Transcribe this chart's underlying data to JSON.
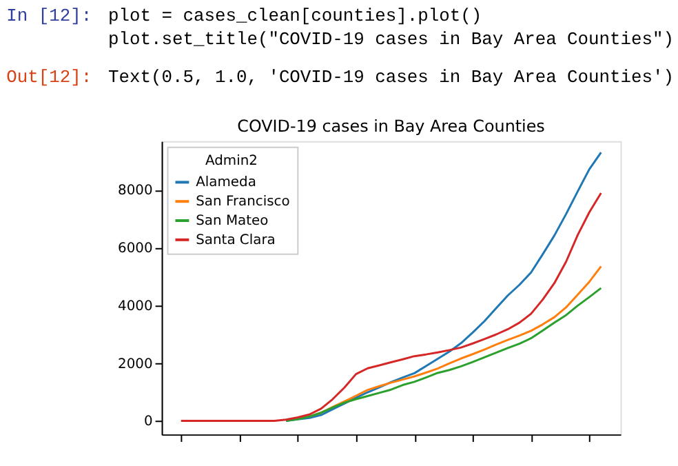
{
  "chart_data": {
    "type": "line",
    "title": "COVID-19 cases in Bay Area Counties",
    "legend_title": "Admin2",
    "legend": "top left",
    "grid": false,
    "tick_labels": "y",
    "categories": [
      null,
      null,
      null,
      null,
      null,
      null,
      null,
      null,
      null,
      null,
      null,
      null,
      null,
      null,
      null,
      null,
      null,
      null,
      null,
      null,
      null,
      null,
      null,
      null,
      null,
      null,
      null,
      null,
      null,
      null,
      null,
      null,
      null,
      null,
      null,
      null,
      null
    ],
    "ylim": [
      -470,
      9690
    ],
    "yticks": [
      0,
      2000,
      4000,
      6000,
      8000
    ],
    "series": [
      {
        "name": "Alameda",
        "color": "#1f77b4",
        "values": [
          null,
          null,
          null,
          null,
          null,
          null,
          null,
          null,
          null,
          0,
          50,
          100,
          200,
          400,
          600,
          800,
          990,
          1160,
          1340,
          1500,
          1650,
          1900,
          2150,
          2400,
          2690,
          3060,
          3450,
          3900,
          4340,
          4710,
          5140,
          5770,
          6420,
          7160,
          7950,
          8720,
          9300
        ]
      },
      {
        "name": "San Francisco",
        "color": "#ff7f0e",
        "values": [
          null,
          null,
          null,
          null,
          null,
          null,
          null,
          null,
          null,
          null,
          null,
          150,
          280,
          480,
          670,
          870,
          1070,
          1200,
          1320,
          1430,
          1540,
          1670,
          1810,
          1990,
          2160,
          2310,
          2470,
          2640,
          2800,
          2950,
          3120,
          3340,
          3590,
          3930,
          4370,
          4820,
          5350
        ]
      },
      {
        "name": "San Mateo",
        "color": "#2ca02c",
        "values": [
          null,
          null,
          null,
          null,
          null,
          null,
          null,
          null,
          null,
          0,
          60,
          150,
          280,
          460,
          630,
          750,
          860,
          970,
          1080,
          1240,
          1350,
          1500,
          1660,
          1760,
          1890,
          2040,
          2200,
          2360,
          2520,
          2670,
          2860,
          3130,
          3400,
          3660,
          3990,
          4290,
          4600
        ]
      },
      {
        "name": "Santa Clara",
        "color": "#d62728",
        "values": [
          0,
          0,
          0,
          0,
          0,
          0,
          0,
          0,
          0,
          40,
          120,
          220,
          420,
          750,
          1150,
          1620,
          1820,
          1920,
          2030,
          2130,
          2240,
          2300,
          2370,
          2450,
          2540,
          2680,
          2830,
          2990,
          3170,
          3400,
          3710,
          4200,
          4770,
          5510,
          6440,
          7230,
          7890
        ]
      }
    ],
    "annotations": [
      "In [12]:",
      "plot = cases_clean[counties].plot()",
      "plot.set_title(\"COVID-19 cases in Bay Area Counties\")",
      "Out[12]:",
      "Text(0.5, 1.0, 'COVID-19 cases in Bay Area Counties')"
    ]
  }
}
